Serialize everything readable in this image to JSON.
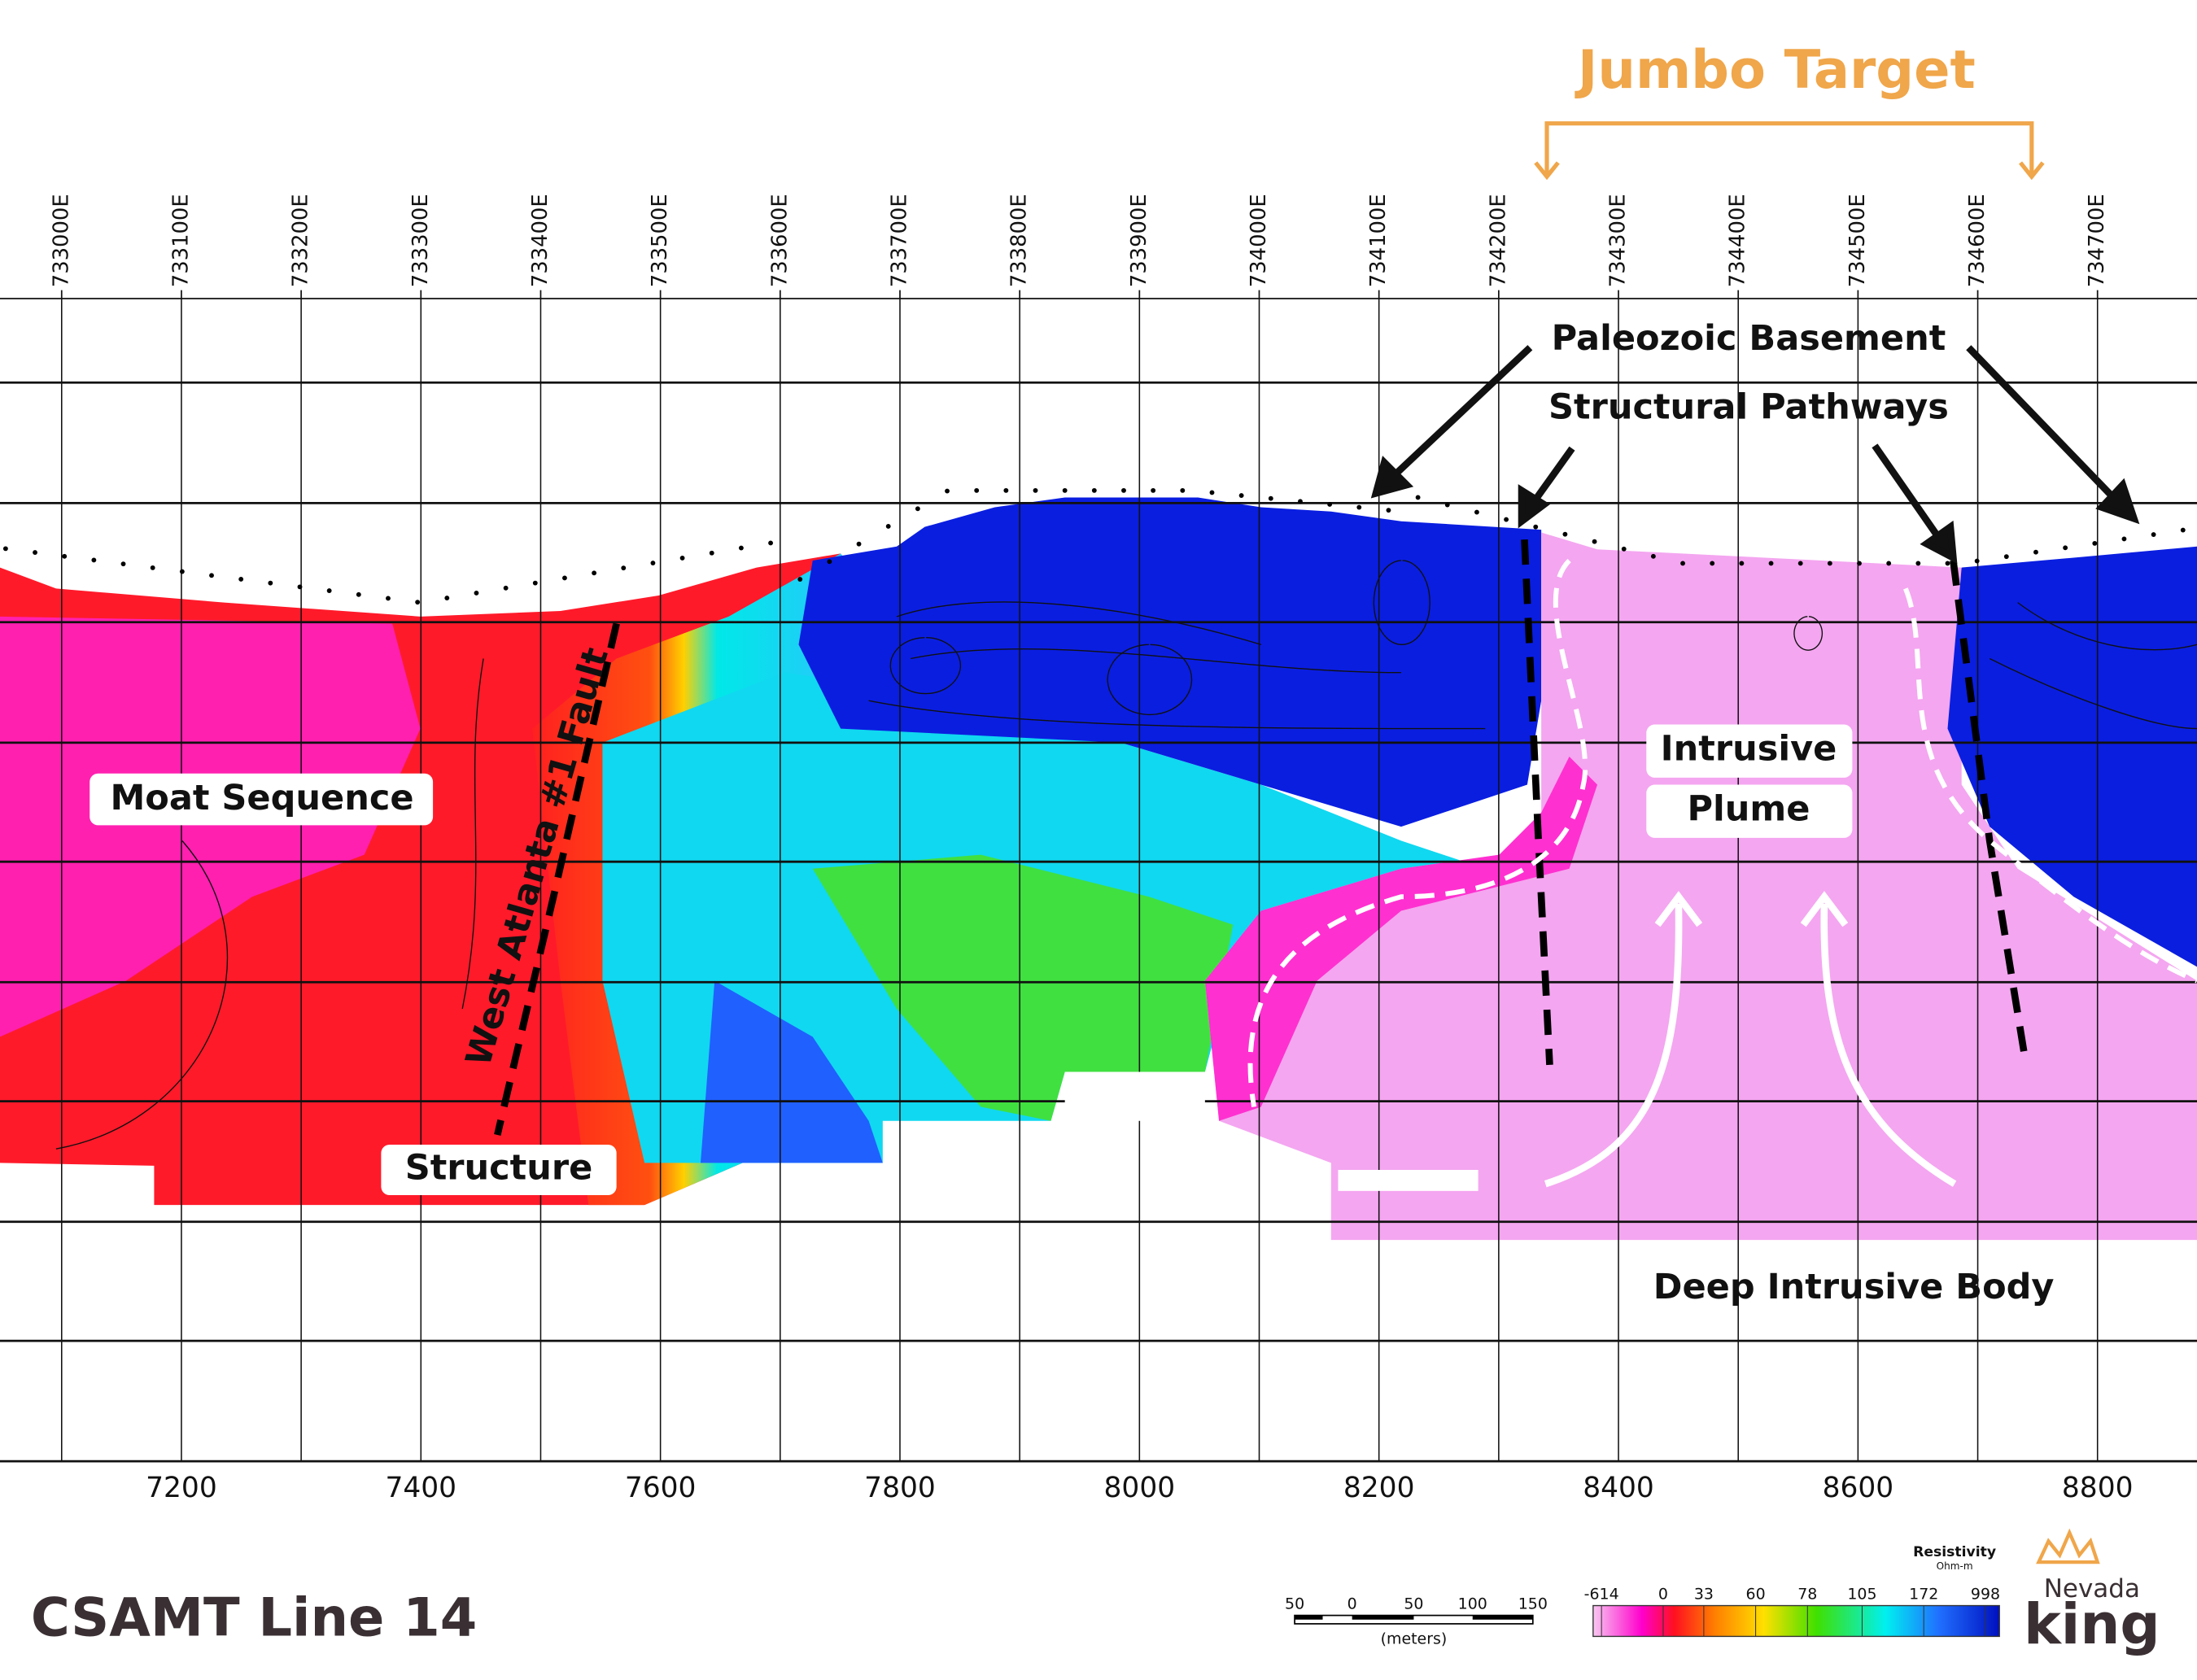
{
  "header": {
    "title": "Jumbo Target"
  },
  "eastings": [
    "733000E",
    "733100E",
    "733200E",
    "733300E",
    "733400E",
    "733500E",
    "733600E",
    "733700E",
    "733800E",
    "733900E",
    "734000E",
    "734100E",
    "734200E",
    "734300E",
    "734400E",
    "734500E",
    "734600E",
    "734700E"
  ],
  "distances": [
    7200,
    7400,
    7600,
    7800,
    8000,
    8200,
    8400,
    8600,
    8800
  ],
  "annotations": {
    "paleozoic": "Paleozoic Basement",
    "pathways": "Structural Pathways",
    "moat": "Moat Sequence",
    "fault": "West Atlanta #1 Fault",
    "structure": "Structure",
    "intrusive": "Intrusive",
    "plume": "Plume",
    "deep": "Deep Intrusive Body"
  },
  "footer": {
    "line": "CSAMT Line 14"
  },
  "scale_bar": {
    "labels": [
      50,
      0,
      50,
      100,
      150
    ],
    "unit": "(meters)"
  },
  "legend": {
    "title": "Resistivity",
    "unit": "Ohm-m",
    "ticks": [
      -614,
      0,
      33,
      60,
      78,
      105,
      172,
      998
    ]
  },
  "logo": {
    "top": "Nevada",
    "bottom": "king"
  }
}
